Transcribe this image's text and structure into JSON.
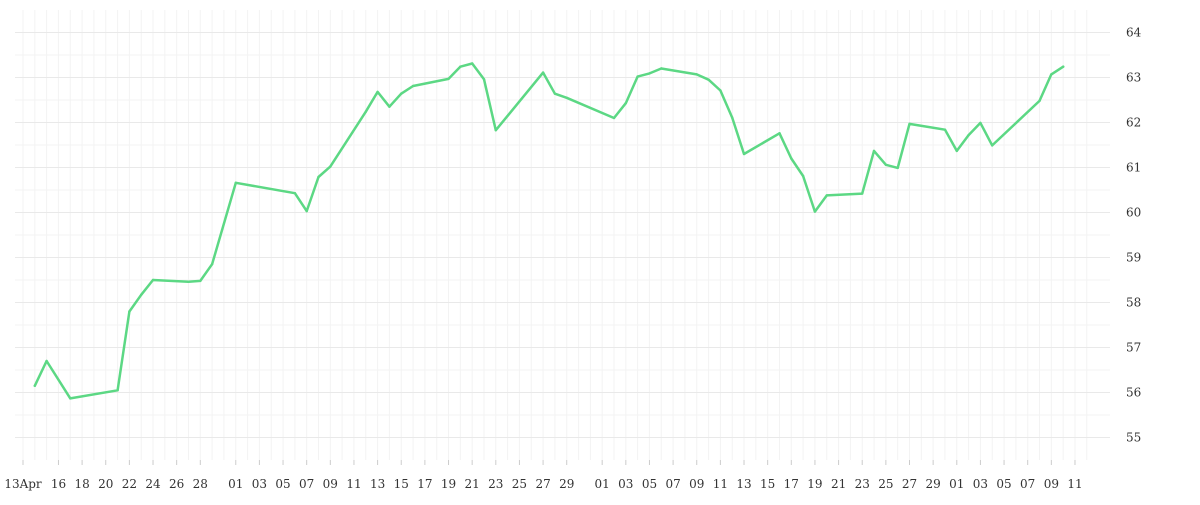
{
  "chart_data": {
    "type": "line",
    "title": "",
    "xlabel": "",
    "ylabel": "",
    "ylim": [
      54.5,
      64.5
    ],
    "y_ticks": [
      55,
      56,
      57,
      58,
      59,
      60,
      61,
      62,
      63,
      64
    ],
    "y_axis_side": "right",
    "grid": true,
    "line_color": "#5cd884",
    "x_tick_labels": [
      "13Apr",
      "16",
      "18",
      "20",
      "22",
      "24",
      "26",
      "28",
      "01",
      "03",
      "05",
      "07",
      "09",
      "11",
      "13",
      "15",
      "17",
      "19",
      "21",
      "23",
      "25",
      "27",
      "29",
      "01",
      "03",
      "05",
      "07",
      "09",
      "11",
      "13",
      "15",
      "17",
      "19",
      "21",
      "23",
      "25",
      "27",
      "29",
      "01",
      "03",
      "05",
      "07",
      "09",
      "11"
    ],
    "series": [
      {
        "name": "",
        "x": [
          "2023-04-14",
          "2023-04-15",
          "2023-04-17",
          "2023-04-21",
          "2023-04-22",
          "2023-04-23",
          "2023-04-24",
          "2023-04-27",
          "2023-04-28",
          "2023-04-29",
          "2023-05-01",
          "2023-05-06",
          "2023-05-07",
          "2023-05-08",
          "2023-05-09",
          "2023-05-12",
          "2023-05-13",
          "2023-05-14",
          "2023-05-15",
          "2023-05-16",
          "2023-05-19",
          "2023-05-20",
          "2023-05-21",
          "2023-05-22",
          "2023-05-23",
          "2023-05-27",
          "2023-05-28",
          "2023-05-29",
          "2023-06-02",
          "2023-06-03",
          "2023-06-04",
          "2023-06-05",
          "2023-06-06",
          "2023-06-09",
          "2023-06-10",
          "2023-06-11",
          "2023-06-12",
          "2023-06-13",
          "2023-06-16",
          "2023-06-17",
          "2023-06-18",
          "2023-06-19",
          "2023-06-20",
          "2023-06-23",
          "2023-06-24",
          "2023-06-25",
          "2023-06-26",
          "2023-06-27",
          "2023-06-30",
          "2023-07-01",
          "2023-07-02",
          "2023-07-03",
          "2023-07-04",
          "2023-07-08",
          "2023-07-09",
          "2023-07-10"
        ],
        "values": [
          56.15,
          56.7,
          55.87,
          56.05,
          57.8,
          58.17,
          58.5,
          58.46,
          58.48,
          58.85,
          60.66,
          60.43,
          60.03,
          60.79,
          61.02,
          62.24,
          62.68,
          62.35,
          62.64,
          62.81,
          62.97,
          63.24,
          63.31,
          62.96,
          61.83,
          63.11,
          62.64,
          62.55,
          62.1,
          62.43,
          63.02,
          63.09,
          63.2,
          63.07,
          62.95,
          62.71,
          62.11,
          61.3,
          61.76,
          61.2,
          60.81,
          60.02,
          60.38,
          60.42,
          61.37,
          61.06,
          60.99,
          61.97,
          61.84,
          61.37,
          61.72,
          61.99,
          61.49,
          62.48,
          63.07,
          63.24
        ]
      }
    ]
  }
}
